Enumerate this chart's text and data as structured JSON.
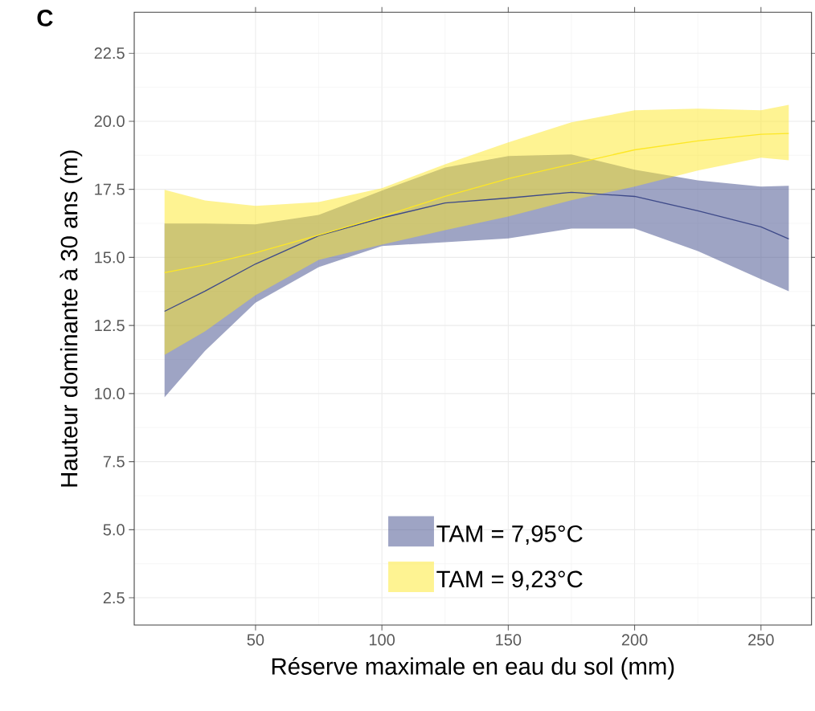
{
  "chart_data": {
    "type": "line",
    "title": "C",
    "xlabel": "Réserve maximale en eau du sol (mm)",
    "ylabel": "Hauteur dominante à 30 ans (m)",
    "x": [
      14,
      30,
      50,
      75,
      100,
      125,
      150,
      175,
      200,
      225,
      250,
      261
    ],
    "series": [
      {
        "name": "TAM = 7,95°C",
        "color": "#3e4a89",
        "values": [
          13.02,
          13.76,
          14.76,
          15.8,
          16.45,
          17.0,
          17.18,
          17.39,
          17.24,
          16.71,
          16.12,
          15.68
        ],
        "lower": [
          9.86,
          11.57,
          13.34,
          14.64,
          15.42,
          15.56,
          15.7,
          16.06,
          16.06,
          15.23,
          14.2,
          13.76
        ],
        "upper": [
          16.24,
          16.24,
          16.21,
          16.56,
          17.45,
          18.3,
          18.72,
          18.78,
          18.22,
          17.83,
          17.6,
          17.63
        ]
      },
      {
        "name": "TAM = 9,23°C",
        "color": "#fde725",
        "values": [
          14.44,
          14.73,
          15.17,
          15.82,
          16.5,
          17.24,
          17.89,
          18.42,
          18.95,
          19.28,
          19.52,
          19.55
        ],
        "lower": [
          11.42,
          12.28,
          13.61,
          14.91,
          15.47,
          16.0,
          16.5,
          17.1,
          17.6,
          18.19,
          18.66,
          18.57
        ],
        "upper": [
          17.48,
          17.09,
          16.89,
          17.03,
          17.54,
          18.42,
          19.22,
          19.96,
          20.4,
          20.46,
          20.4,
          20.6
        ]
      }
    ],
    "xlim": [
      2,
      270
    ],
    "ylim": [
      1.5,
      24
    ],
    "xticks": [
      50,
      100,
      150,
      200,
      250
    ],
    "yticks": [
      {
        "value": 2.5,
        "label": "2.5"
      },
      {
        "value": 5,
        "label": "5.0"
      },
      {
        "value": 7.5,
        "label": "7.5"
      },
      {
        "value": 10,
        "label": "10.0"
      },
      {
        "value": 12.5,
        "label": "12.5"
      },
      {
        "value": 15,
        "label": "15.0"
      },
      {
        "value": 17.5,
        "label": "17.5"
      },
      {
        "value": 20,
        "label": "20.0"
      },
      {
        "value": 22.5,
        "label": "22.5"
      }
    ],
    "grid": true,
    "legend": "bottom right"
  }
}
